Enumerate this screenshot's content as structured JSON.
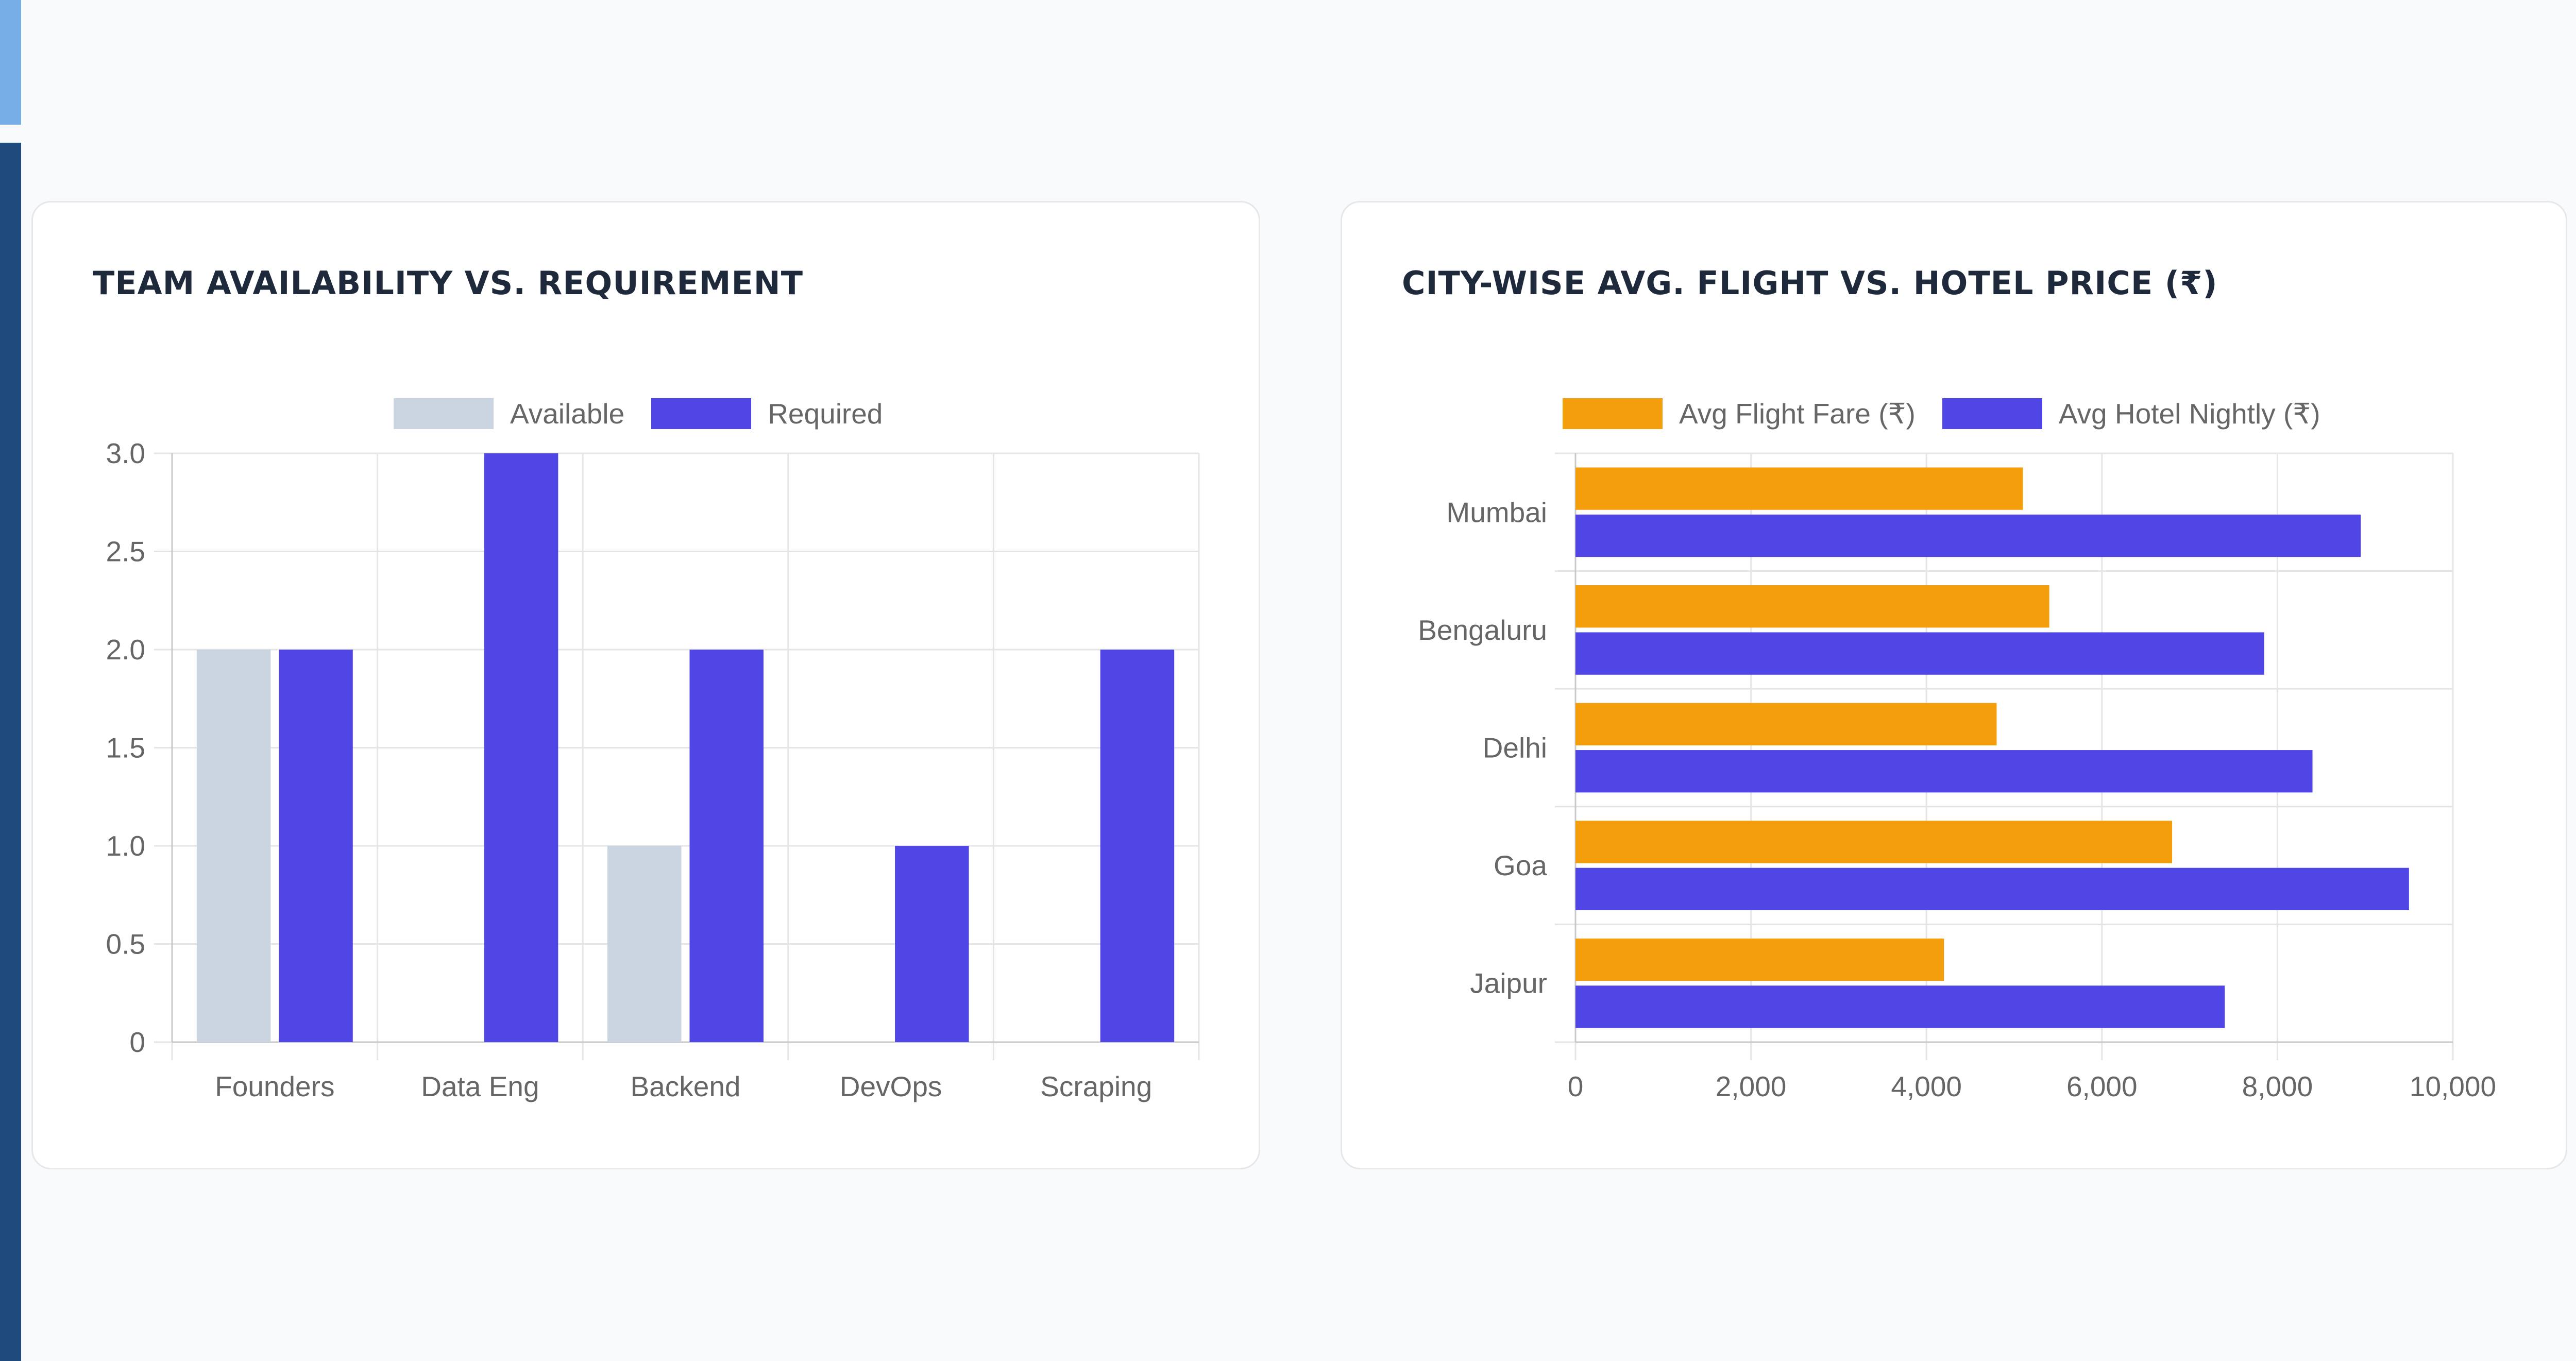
{
  "charts": {
    "team": {
      "title": "TEAM AVAILABILITY VS. REQUIREMENT"
    },
    "city": {
      "title": "CITY-WISE AVG. FLIGHT VS. HOTEL PRICE (₹)"
    }
  },
  "chart_data": [
    {
      "type": "bar",
      "orientation": "vertical",
      "title": "TEAM AVAILABILITY VS. REQUIREMENT",
      "categories": [
        "Founders",
        "Data Eng",
        "Backend",
        "DevOps",
        "Scraping"
      ],
      "series": [
        {
          "name": "Available",
          "values": [
            2,
            0,
            1,
            0,
            0
          ],
          "color": "#cbd5e1"
        },
        {
          "name": "Required",
          "values": [
            2,
            3,
            2,
            1,
            2
          ],
          "color": "#4f46e5"
        }
      ],
      "ylim": [
        0,
        3
      ],
      "yticks": [
        0,
        0.5,
        1,
        1.5,
        2,
        2.5,
        3
      ],
      "ytick_labels": [
        "0",
        "0.5",
        "1.0",
        "1.5",
        "2.0",
        "2.5",
        "3.0"
      ],
      "grid": true,
      "legend": "top-center"
    },
    {
      "type": "bar",
      "orientation": "horizontal",
      "title": "CITY-WISE AVG. FLIGHT VS. HOTEL PRICE (₹)",
      "categories": [
        "Mumbai",
        "Bengaluru",
        "Delhi",
        "Goa",
        "Jaipur"
      ],
      "series": [
        {
          "name": "Avg Flight Fare (₹)",
          "values": [
            5100,
            5400,
            4800,
            6800,
            4200
          ],
          "color": "#f59e0b"
        },
        {
          "name": "Avg Hotel Nightly (₹)",
          "values": [
            8950,
            7850,
            8400,
            9500,
            7400
          ],
          "color": "#4f46e5"
        }
      ],
      "xlim": [
        0,
        10000
      ],
      "xticks": [
        0,
        2000,
        4000,
        6000,
        8000,
        10000
      ],
      "xtick_labels": [
        "0",
        "2,000",
        "4,000",
        "6,000",
        "8,000",
        "10,000"
      ],
      "grid": true,
      "legend": "top-center"
    }
  ]
}
